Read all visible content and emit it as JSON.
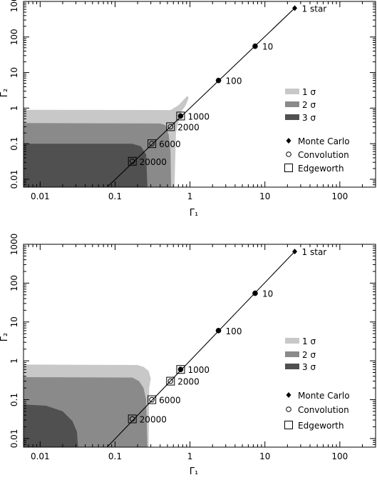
{
  "chart_data": [
    {
      "type": "line",
      "panel": "top",
      "xlabel": "Γ₁",
      "ylabel": "Γ₂",
      "xscale": "log",
      "yscale": "log",
      "xlim": [
        0.006,
        300
      ],
      "ylim": [
        0.006,
        1000
      ],
      "x_ticks": [
        "0.01",
        "0.1",
        "1",
        "10",
        "100"
      ],
      "y_ticks": [
        "0.01",
        "0.1",
        "1",
        "10",
        "100",
        "1000"
      ],
      "legend_placement": "right",
      "legend": {
        "contours": [
          {
            "label_prefix": "1 ",
            "label_sigma": "σ",
            "color": "#c8c8c8"
          },
          {
            "label_prefix": "2 ",
            "label_sigma": "σ",
            "color": "#8a8a8a"
          },
          {
            "label_prefix": "3 ",
            "label_sigma": "σ",
            "color": "#505050"
          }
        ],
        "markers": [
          {
            "label": "Monte Carlo",
            "symbol": "diamond"
          },
          {
            "label": "Convolution",
            "symbol": "circle"
          },
          {
            "label": "Edgeworth",
            "symbol": "square"
          }
        ]
      },
      "line": {
        "x": [
          0.075,
          25
        ],
        "y": [
          0.0055,
          650
        ]
      },
      "points": [
        {
          "label": "1 star",
          "x": 25,
          "y": 650,
          "markers": [
            "diamond"
          ]
        },
        {
          "label": "10",
          "x": 7.4,
          "y": 55,
          "markers": [
            "diamond",
            "circle"
          ]
        },
        {
          "label": "100",
          "x": 2.4,
          "y": 6,
          "markers": [
            "diamond",
            "circle"
          ]
        },
        {
          "label": "1000",
          "x": 0.75,
          "y": 0.6,
          "markers": [
            "diamond",
            "circle",
            "square"
          ]
        },
        {
          "label": "2000",
          "x": 0.55,
          "y": 0.3,
          "markers": [
            "circle",
            "square"
          ]
        },
        {
          "label": "6000",
          "x": 0.31,
          "y": 0.1,
          "markers": [
            "circle",
            "square"
          ]
        },
        {
          "label": "20000",
          "x": 0.17,
          "y": 0.032,
          "markers": [
            "circle",
            "square"
          ]
        }
      ],
      "regions": [
        {
          "name": "1 sigma",
          "color": "#c8c8c8",
          "points": [
            [
              0.006,
              0.006
            ],
            [
              0.006,
              0.9
            ],
            [
              0.55,
              0.88
            ],
            [
              0.7,
              1.2
            ],
            [
              0.92,
              2.2
            ],
            [
              0.96,
              1.95
            ],
            [
              0.88,
              1.2
            ],
            [
              0.75,
              0.75
            ],
            [
              0.65,
              0.2
            ],
            [
              0.62,
              0.006
            ]
          ]
        },
        {
          "name": "2 sigma",
          "color": "#8a8a8a",
          "points": [
            [
              0.006,
              0.006
            ],
            [
              0.006,
              0.38
            ],
            [
              0.4,
              0.37
            ],
            [
              0.47,
              0.33
            ],
            [
              0.52,
              0.18
            ],
            [
              0.55,
              0.06
            ],
            [
              0.56,
              0.006
            ]
          ]
        },
        {
          "name": "3 sigma",
          "color": "#505050",
          "points": [
            [
              0.006,
              0.006
            ],
            [
              0.006,
              0.1
            ],
            [
              0.17,
              0.1
            ],
            [
              0.22,
              0.085
            ],
            [
              0.26,
              0.05
            ],
            [
              0.27,
              0.006
            ]
          ]
        }
      ]
    },
    {
      "type": "line",
      "panel": "bottom",
      "xlabel": "Γ₁",
      "ylabel": "Γ₂",
      "xscale": "log",
      "yscale": "log",
      "xlim": [
        0.006,
        300
      ],
      "ylim": [
        0.006,
        1000
      ],
      "x_ticks": [
        "0.01",
        "0.1",
        "1",
        "10",
        "100"
      ],
      "y_ticks": [
        "0.01",
        "0.1",
        "1",
        "10",
        "100",
        "1000"
      ],
      "legend_placement": "right",
      "legend": {
        "contours": [
          {
            "label_prefix": "1 ",
            "label_sigma": "σ",
            "color": "#c8c8c8"
          },
          {
            "label_prefix": "2 ",
            "label_sigma": "σ",
            "color": "#8a8a8a"
          },
          {
            "label_prefix": "3 ",
            "label_sigma": "σ",
            "color": "#505050"
          }
        ],
        "markers": [
          {
            "label": "Monte Carlo",
            "symbol": "diamond"
          },
          {
            "label": "Convolution",
            "symbol": "circle"
          },
          {
            "label": "Edgeworth",
            "symbol": "square"
          }
        ]
      },
      "line": {
        "x": [
          0.075,
          25
        ],
        "y": [
          0.0055,
          650
        ]
      },
      "points": [
        {
          "label": "1 star",
          "x": 25,
          "y": 650,
          "markers": [
            "diamond"
          ]
        },
        {
          "label": "10",
          "x": 7.4,
          "y": 55,
          "markers": [
            "diamond",
            "circle"
          ]
        },
        {
          "label": "100",
          "x": 2.4,
          "y": 6,
          "markers": [
            "diamond",
            "circle"
          ]
        },
        {
          "label": "1000",
          "x": 0.75,
          "y": 0.6,
          "markers": [
            "diamond",
            "circle",
            "square"
          ]
        },
        {
          "label": "2000",
          "x": 0.55,
          "y": 0.3,
          "markers": [
            "circle",
            "square"
          ]
        },
        {
          "label": "6000",
          "x": 0.31,
          "y": 0.1,
          "markers": [
            "circle",
            "square"
          ]
        },
        {
          "label": "20000",
          "x": 0.17,
          "y": 0.032,
          "markers": [
            "circle",
            "square"
          ]
        }
      ],
      "regions": [
        {
          "name": "1 sigma",
          "color": "#c8c8c8",
          "points": [
            [
              0.006,
              0.006
            ],
            [
              0.006,
              0.8
            ],
            [
              0.2,
              0.78
            ],
            [
              0.24,
              0.7
            ],
            [
              0.28,
              0.55
            ],
            [
              0.3,
              0.35
            ],
            [
              0.285,
              0.2
            ],
            [
              0.28,
              0.006
            ]
          ]
        },
        {
          "name": "2 sigma",
          "color": "#8a8a8a",
          "points": [
            [
              0.006,
              0.006
            ],
            [
              0.006,
              0.38
            ],
            [
              0.17,
              0.37
            ],
            [
              0.21,
              0.3
            ],
            [
              0.24,
              0.2
            ],
            [
              0.26,
              0.1
            ],
            [
              0.27,
              0.006
            ]
          ]
        },
        {
          "name": "3 sigma",
          "color": "#505050",
          "points": [
            [
              0.006,
              0.006
            ],
            [
              0.006,
              0.075
            ],
            [
              0.012,
              0.07
            ],
            [
              0.02,
              0.05
            ],
            [
              0.027,
              0.028
            ],
            [
              0.031,
              0.015
            ],
            [
              0.032,
              0.006
            ]
          ]
        }
      ]
    }
  ]
}
